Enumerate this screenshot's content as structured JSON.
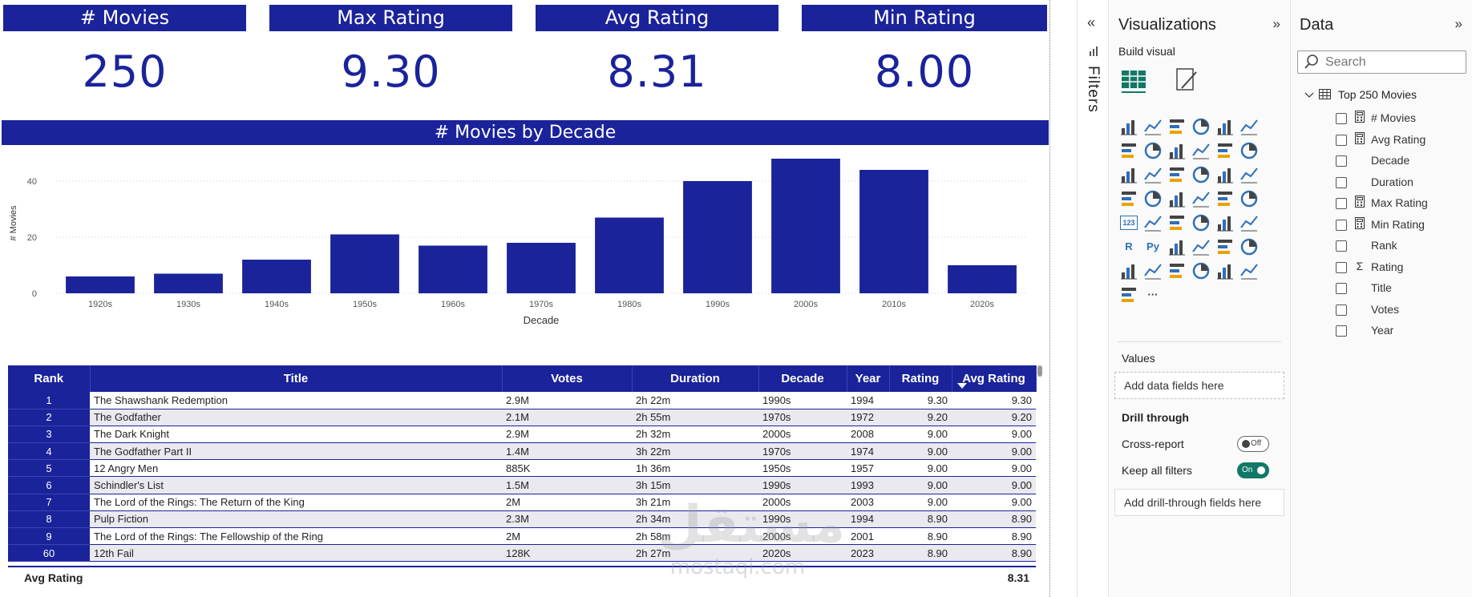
{
  "kpis": [
    {
      "label": "# Movies",
      "value": "250"
    },
    {
      "label": "Max Rating",
      "value": "9.30"
    },
    {
      "label": "Avg Rating",
      "value": "8.31"
    },
    {
      "label": "Min Rating",
      "value": "8.00"
    }
  ],
  "chart_data": {
    "type": "bar",
    "title": "# Movies by Decade",
    "xlabel": "Decade",
    "ylabel": "# Movies",
    "categories": [
      "1920s",
      "1930s",
      "1940s",
      "1950s",
      "1960s",
      "1970s",
      "1980s",
      "1990s",
      "2000s",
      "2010s",
      "2020s"
    ],
    "values": [
      6,
      7,
      12,
      21,
      17,
      18,
      27,
      40,
      48,
      44,
      10
    ],
    "ylim": [
      0,
      50
    ],
    "yticks": [
      0,
      20,
      40
    ],
    "grid": true,
    "color": "#1a239a"
  },
  "table": {
    "columns": [
      "Rank",
      "Title",
      "Votes",
      "Duration",
      "Decade",
      "Year",
      "Rating",
      "Avg Rating"
    ],
    "rows": [
      [
        "1",
        "The Shawshank Redemption",
        "2.9M",
        "2h 22m",
        "1990s",
        "1994",
        "9.30",
        "9.30"
      ],
      [
        "2",
        "The Godfather",
        "2.1M",
        "2h 55m",
        "1970s",
        "1972",
        "9.20",
        "9.20"
      ],
      [
        "3",
        "The Dark Knight",
        "2.9M",
        "2h 32m",
        "2000s",
        "2008",
        "9.00",
        "9.00"
      ],
      [
        "4",
        "The Godfather Part II",
        "1.4M",
        "3h 22m",
        "1970s",
        "1974",
        "9.00",
        "9.00"
      ],
      [
        "5",
        "12 Angry Men",
        "885K",
        "1h 36m",
        "1950s",
        "1957",
        "9.00",
        "9.00"
      ],
      [
        "6",
        "Schindler's List",
        "1.5M",
        "3h 15m",
        "1990s",
        "1993",
        "9.00",
        "9.00"
      ],
      [
        "7",
        "The Lord of the Rings: The Return of the King",
        "2M",
        "3h 21m",
        "2000s",
        "2003",
        "9.00",
        "9.00"
      ],
      [
        "8",
        "Pulp Fiction",
        "2.3M",
        "2h 34m",
        "1990s",
        "1994",
        "8.90",
        "8.90"
      ],
      [
        "9",
        "The Lord of the Rings: The Fellowship of the Ring",
        "2M",
        "2h 58m",
        "2000s",
        "2001",
        "8.90",
        "8.90"
      ],
      [
        "60",
        "12th Fail",
        "128K",
        "2h 27m",
        "2020s",
        "2023",
        "8.90",
        "8.90"
      ]
    ],
    "total_label": "Avg Rating",
    "total_value": "8.31"
  },
  "watermark": {
    "text": "مستقل",
    "sub": "mostaqi.com"
  },
  "filters_pane": {
    "label": "Filters",
    "collapse_glyph": "«"
  },
  "visualizations_pane": {
    "title": "Visualizations",
    "expand_glyph": "»",
    "build_visual": "Build visual",
    "icon_rows": [
      [
        "stacked-bar-chart-icon",
        "stacked-column-chart-icon",
        "clustered-bar-chart-icon",
        "clustered-column-chart-icon",
        "100-bar-chart-icon",
        "100-column-chart-icon"
      ],
      [
        "line-chart-icon",
        "area-chart-icon",
        "stacked-area-chart-icon",
        "100-area-chart-icon",
        "line-column-chart-icon",
        "line-clustered-column-icon"
      ],
      [
        "ribbon-chart-icon",
        "waterfall-chart-icon",
        "funnel-chart-icon",
        "scatter-chart-icon",
        "pie-chart-icon",
        "donut-chart-icon"
      ],
      [
        "treemap-icon",
        "map-icon",
        "filled-map-icon",
        "shape-map-icon",
        "azure-map-icon",
        "gauge-icon"
      ],
      [
        "card-icon",
        "multi-row-card-icon",
        "kpi-icon",
        "slicer-icon",
        "table-icon",
        "matrix-icon"
      ],
      [
        "r-visual-icon",
        "python-visual-icon",
        "key-influencers-icon",
        "decomposition-tree-icon",
        "qna-icon",
        "smart-narrative-icon"
      ],
      [
        "goals-icon",
        "paginated-report-icon",
        "power-apps-icon",
        "power-automate-icon",
        "arcgis-icon",
        "diamond-visual-icon"
      ],
      [
        "power-automate-flow-icon",
        "more-visuals-icon"
      ]
    ],
    "glyph_r": "R",
    "glyph_py": "Py",
    "glyph_card": "123",
    "glyph_more": "···",
    "values_label": "Values",
    "values_well": "Add data fields here",
    "drill_through": "Drill through",
    "cross_report": "Cross-report",
    "cross_report_state": "Off",
    "keep_filters": "Keep all filters",
    "keep_filters_state": "On",
    "drill_well": "Add drill-through fields here"
  },
  "data_pane": {
    "title": "Data",
    "expand_glyph": "»",
    "search_placeholder": "Search",
    "table_name": "Top 250 Movies",
    "fields": [
      {
        "name": "# Movies",
        "icon": "calculator-icon"
      },
      {
        "name": "Avg Rating",
        "icon": "calculator-icon"
      },
      {
        "name": "Decade",
        "icon": ""
      },
      {
        "name": "Duration",
        "icon": ""
      },
      {
        "name": "Max Rating",
        "icon": "calculator-icon"
      },
      {
        "name": "Min Rating",
        "icon": "calculator-icon"
      },
      {
        "name": "Rank",
        "icon": ""
      },
      {
        "name": "Rating",
        "icon": "sigma-icon"
      },
      {
        "name": "Title",
        "icon": ""
      },
      {
        "name": "Votes",
        "icon": ""
      },
      {
        "name": "Year",
        "icon": ""
      }
    ]
  }
}
